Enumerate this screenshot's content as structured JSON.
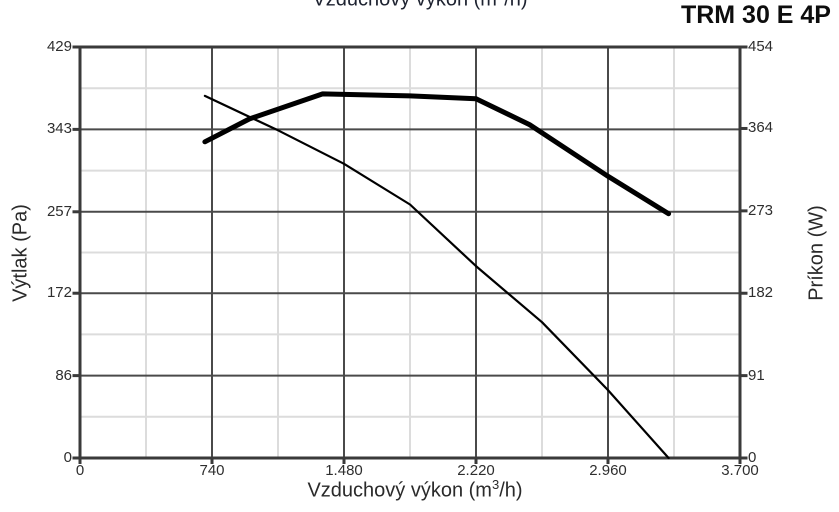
{
  "title": "TRM 30 E 4P",
  "labels": {
    "y_left": "Výtlak (Pa)",
    "y_right": "Príkon (W)",
    "x_prefix": "Vzduchový výkon (m",
    "x_sup": "3",
    "x_suffix": "/h)"
  },
  "colors": {
    "axis": "#3a3a3a",
    "grid_major": "#4a4a4a",
    "grid_minor": "#dcdcdc",
    "curve": "#000000",
    "text": "#2a2a2a"
  },
  "chart_data": {
    "type": "line",
    "title": "TRM 30 E 4P",
    "xlabel": "Vzduchový výkon (m3/h)",
    "ylabel_left": "Výtlak (Pa)",
    "ylabel_right": "Príkon (W)",
    "xlim": [
      0,
      3700
    ],
    "ylim_left": [
      0,
      429
    ],
    "ylim_right": [
      0,
      454
    ],
    "grid": {
      "major": true,
      "minor": true
    },
    "legend": "none",
    "x_ticks": [
      0,
      740,
      1480,
      2220,
      2960,
      3700
    ],
    "x_tick_labels": [
      "0",
      "740",
      "1.480",
      "2.220",
      "2.960",
      "3.700"
    ],
    "x_minor": [
      370,
      1110,
      1850,
      2590,
      3330
    ],
    "y_left_ticks": [
      0,
      86,
      172,
      257,
      343,
      429
    ],
    "y_left_tick_labels": [
      "0",
      "86",
      "172",
      "257",
      "343",
      "429"
    ],
    "y_left_minor": [
      43,
      129,
      214.5,
      300,
      386
    ],
    "y_right_ticks": [
      0,
      91,
      182,
      273,
      364,
      454
    ],
    "y_right_tick_labels": [
      "0",
      "91",
      "182",
      "273",
      "364",
      "454"
    ],
    "series": [
      {
        "name": "Výtlak (Pa)",
        "axis": "left",
        "stroke_width": 5,
        "points": [
          [
            700,
            330
          ],
          [
            950,
            354
          ],
          [
            1360,
            380
          ],
          [
            1850,
            378
          ],
          [
            2220,
            375
          ],
          [
            2520,
            348
          ],
          [
            2960,
            294
          ],
          [
            3300,
            255
          ]
        ]
      },
      {
        "name": "Príkon (W)",
        "axis": "right",
        "stroke_width": 2.2,
        "points": [
          [
            700,
            400
          ],
          [
            1110,
            362
          ],
          [
            1480,
            325
          ],
          [
            1850,
            280
          ],
          [
            2220,
            212
          ],
          [
            2590,
            150
          ],
          [
            2960,
            75
          ],
          [
            3300,
            0
          ]
        ]
      }
    ]
  }
}
